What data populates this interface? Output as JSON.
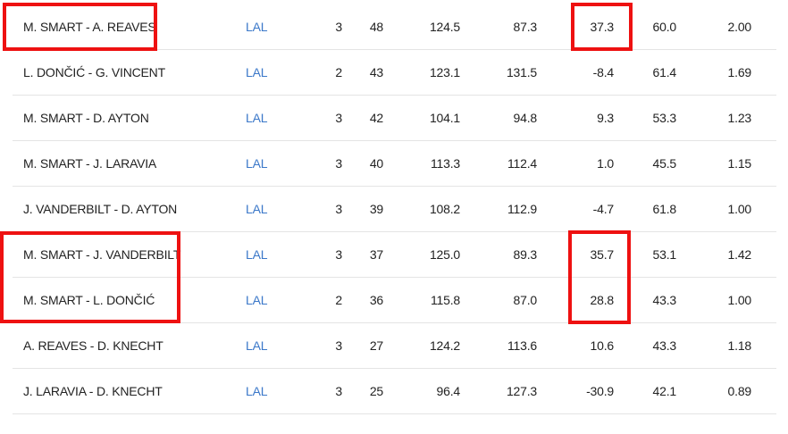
{
  "table": {
    "rows": [
      {
        "lineup": "M. SMART - A. REAVES",
        "team": "LAL",
        "gp": "3",
        "min": "48",
        "ortg": "124.5",
        "drtg": "87.3",
        "net": "37.3",
        "pace": "60.0",
        "astto": "2.00"
      },
      {
        "lineup": "L. DONČIĆ - G. VINCENT",
        "team": "LAL",
        "gp": "2",
        "min": "43",
        "ortg": "123.1",
        "drtg": "131.5",
        "net": "-8.4",
        "pace": "61.4",
        "astto": "1.69"
      },
      {
        "lineup": "M. SMART - D. AYTON",
        "team": "LAL",
        "gp": "3",
        "min": "42",
        "ortg": "104.1",
        "drtg": "94.8",
        "net": "9.3",
        "pace": "53.3",
        "astto": "1.23"
      },
      {
        "lineup": "M. SMART - J. LARAVIA",
        "team": "LAL",
        "gp": "3",
        "min": "40",
        "ortg": "113.3",
        "drtg": "112.4",
        "net": "1.0",
        "pace": "45.5",
        "astto": "1.15"
      },
      {
        "lineup": "J. VANDERBILT - D. AYTON",
        "team": "LAL",
        "gp": "3",
        "min": "39",
        "ortg": "108.2",
        "drtg": "112.9",
        "net": "-4.7",
        "pace": "61.8",
        "astto": "1.00"
      },
      {
        "lineup": "M. SMART - J. VANDERBILT",
        "team": "LAL",
        "gp": "3",
        "min": "37",
        "ortg": "125.0",
        "drtg": "89.3",
        "net": "35.7",
        "pace": "53.1",
        "astto": "1.42"
      },
      {
        "lineup": "M. SMART - L. DONČIĆ",
        "team": "LAL",
        "gp": "2",
        "min": "36",
        "ortg": "115.8",
        "drtg": "87.0",
        "net": "28.8",
        "pace": "43.3",
        "astto": "1.00"
      },
      {
        "lineup": "A. REAVES - D. KNECHT",
        "team": "LAL",
        "gp": "3",
        "min": "27",
        "ortg": "124.2",
        "drtg": "113.6",
        "net": "10.6",
        "pace": "43.3",
        "astto": "1.18"
      },
      {
        "lineup": "J. LARAVIA - D. KNECHT",
        "team": "LAL",
        "gp": "3",
        "min": "25",
        "ortg": "96.4",
        "drtg": "127.3",
        "net": "-30.9",
        "pace": "42.1",
        "astto": "0.89"
      }
    ]
  },
  "colors": {
    "team_link": "#3b78c9",
    "highlight": "#ee1111",
    "divider": "#e4e4e4"
  }
}
